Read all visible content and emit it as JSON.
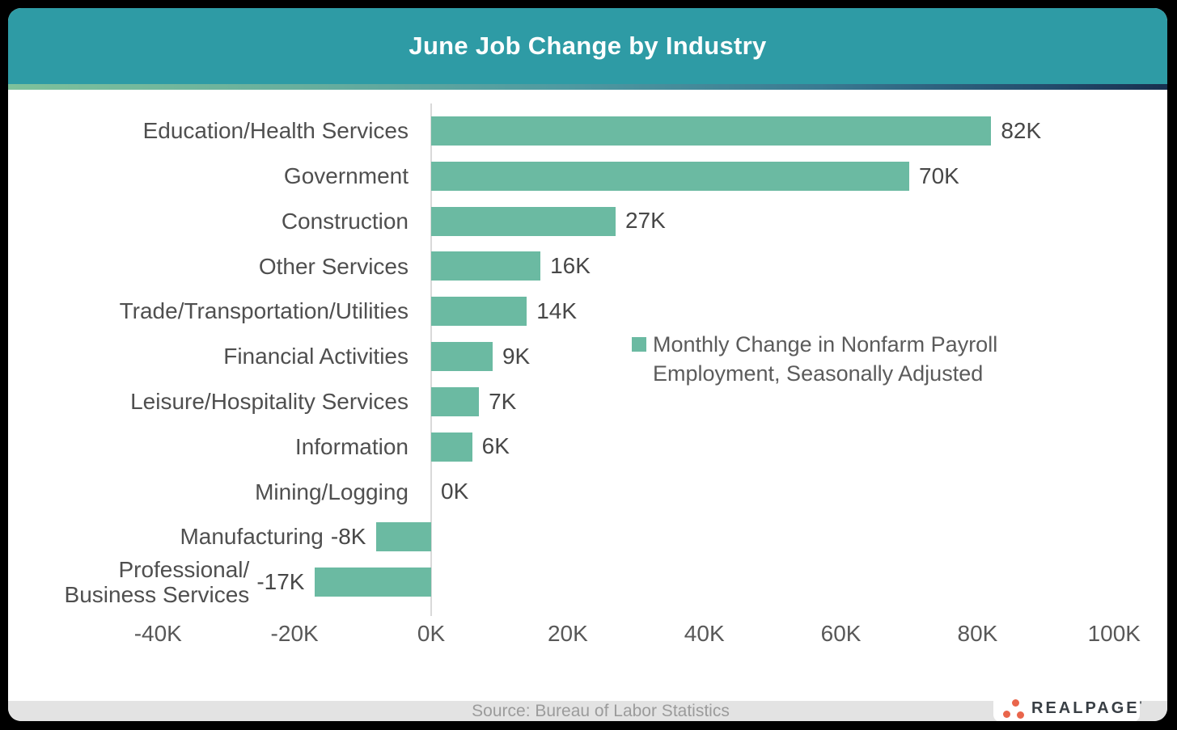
{
  "title_bar": {
    "title": "June Job Change by Industry",
    "bg_color": "#2E9BA5"
  },
  "chart_data": {
    "type": "bar",
    "orientation": "horizontal",
    "title": "June Job Change by Industry",
    "categories": [
      "Education/Health Services",
      "Government",
      "Construction",
      "Other Services",
      "Trade/Transportation/Utilities",
      "Financial Activities",
      "Leisure/Hospitality Services",
      "Information",
      "Mining/Logging",
      "Manufacturing",
      "Professional/\nBusiness Services"
    ],
    "values": [
      82,
      70,
      27,
      16,
      14,
      9,
      7,
      6,
      0,
      -8,
      -17
    ],
    "value_labels": [
      "82K",
      "70K",
      "27K",
      "16K",
      "14K",
      "9K",
      "7K",
      "6K",
      "0K",
      "-8K",
      "-17K"
    ],
    "unit": "K",
    "xlim": [
      -40,
      100
    ],
    "x_tick_values": [
      -40,
      -20,
      0,
      20,
      40,
      60,
      80,
      100
    ],
    "x_tick_labels": [
      "-40K",
      "-20K",
      "0K",
      "20K",
      "40K",
      "60K",
      "80K",
      "100K"
    ],
    "grid": false,
    "legend_position": "center-right",
    "bar_color": "#6BBAA2",
    "legend": {
      "label": "Monthly Change in Nonfarm Payroll Employment, Seasonally Adjusted",
      "swatch_color": "#6BBAA2"
    }
  },
  "footer": {
    "source": "Source: Bureau of Labor Statistics",
    "bg_color": "#E3E3E3"
  },
  "logo": {
    "text": "REALPAGE",
    "trademark_mark": "'",
    "dot_color": "#E9654B"
  },
  "colors": {
    "page_bg": "#000000",
    "card_bg": "#FFFFFF",
    "stripe_gradient": [
      "#7EC19B",
      "#4F9AA1",
      "#182F4F"
    ],
    "axis_line": "#D9D9D9",
    "label_text": "#4F4F4F"
  }
}
